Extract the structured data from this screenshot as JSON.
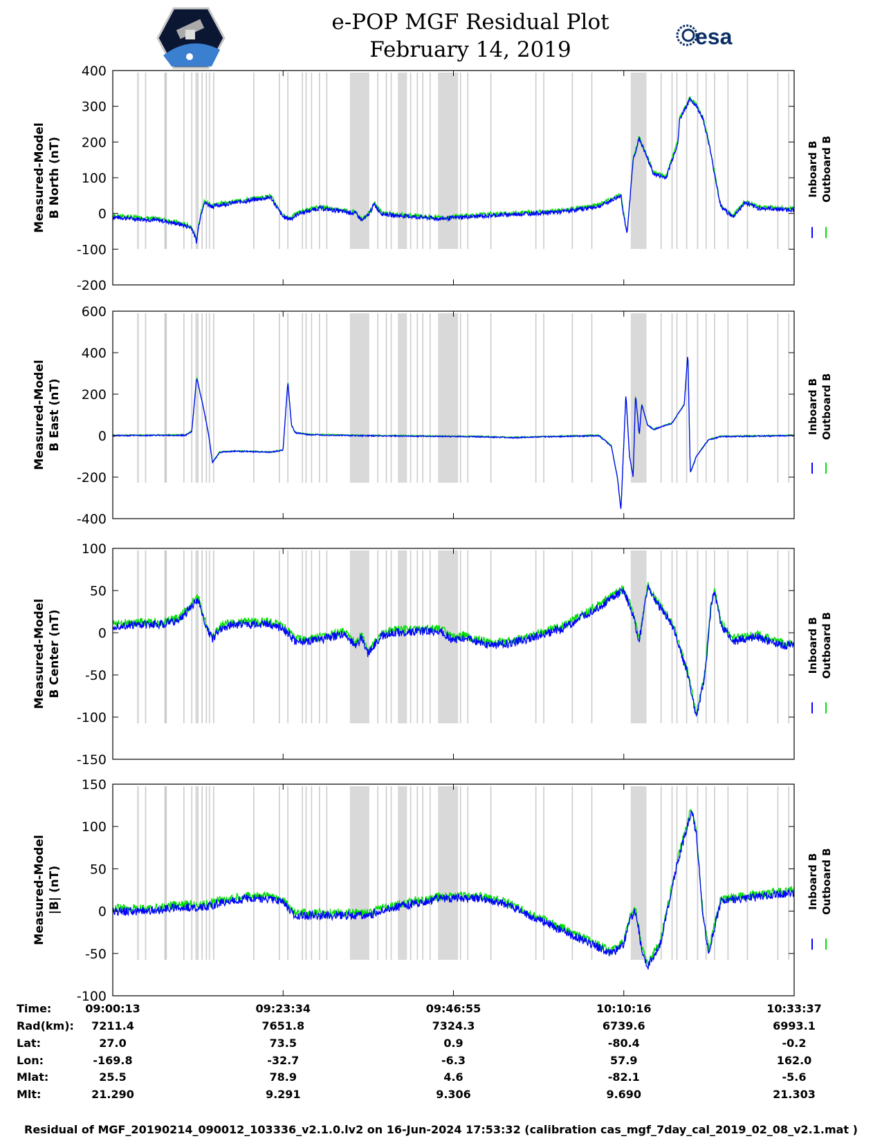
{
  "title_line1": "e-POP MGF Residual Plot",
  "title_line2": "February 14, 2019",
  "logos": {
    "left": "cassiope-mission-logo",
    "right_text": "esa"
  },
  "colors": {
    "inboard": "#0000ff",
    "outboard": "#00dd00",
    "gap_shade": "#d9d9d9"
  },
  "footer": "Residual of MGF_20190214_090012_103336_v2.1.0.lv2 on 16-Jun-2024 17:53:32 (calibration cas_mgf_7day_cal_2019_02_08_v2.1.mat )",
  "chart_data": {
    "type": "line",
    "x_unit": "seconds since 09:00:13",
    "x_range": [
      0,
      5604
    ],
    "legend": [
      "Inboard B",
      "Outboard B"
    ],
    "gap_bands_s": [
      [
        200,
        215
      ],
      [
        425,
        440
      ],
      [
        680,
        695
      ],
      [
        790,
        800
      ],
      [
        1950,
        2110
      ],
      [
        2345,
        2420
      ],
      [
        2675,
        2840
      ],
      [
        4260,
        4390
      ]
    ],
    "gap_lines_s": [
      270,
      430,
      440,
      585,
      650,
      700,
      735,
      770,
      830,
      1160,
      1370,
      1440,
      1560,
      1590,
      1635,
      1700,
      1760,
      2180,
      2250,
      2290,
      2450,
      2505,
      2550,
      2610,
      2860,
      2920,
      3110,
      3480,
      3545,
      3780,
      3940,
      4510,
      4600,
      4640,
      4720,
      4810,
      4880,
      4950,
      5060,
      5220,
      5470,
      5560
    ],
    "panels": [
      {
        "ylabel": [
          "Measured-Model",
          "B North (nT)"
        ],
        "ylim": [
          -200,
          400
        ],
        "ticks": [
          400,
          300,
          200,
          100,
          0,
          -100,
          -200
        ],
        "anchors_t": [
          0,
          400,
          550,
          650,
          690,
          700,
          720,
          750,
          820,
          900,
          1300,
          1400,
          1460,
          1490,
          1530,
          1700,
          2000,
          2050,
          2100,
          2150,
          2210,
          2300,
          2700,
          2900,
          3700,
          4000,
          4180,
          4200,
          4230,
          4280,
          4330,
          4450,
          4550,
          4600,
          4650,
          4660,
          4700,
          4750,
          4800,
          4850,
          4900,
          5000,
          5100,
          5200,
          5300,
          5604
        ],
        "anchors_v": [
          -10,
          -20,
          -30,
          -40,
          -80,
          -50,
          -10,
          30,
          20,
          25,
          45,
          -10,
          -15,
          -10,
          0,
          15,
          0,
          -20,
          -5,
          25,
          0,
          -5,
          -15,
          -10,
          5,
          20,
          50,
          0,
          -60,
          150,
          210,
          110,
          100,
          150,
          200,
          260,
          290,
          320,
          300,
          270,
          200,
          20,
          -10,
          30,
          15,
          10
        ],
        "noise": 6
      },
      {
        "ylabel": [
          "Measured-Model",
          "B East (nT)"
        ],
        "ylim": [
          -400,
          600
        ],
        "ticks": [
          600,
          400,
          200,
          0,
          -200,
          -400
        ],
        "anchors_t": [
          0,
          600,
          650,
          690,
          740,
          790,
          820,
          880,
          1000,
          1300,
          1400,
          1440,
          1470,
          1500,
          1600,
          2000,
          3000,
          3300,
          3600,
          4000,
          4100,
          4150,
          4180,
          4220,
          4250,
          4280,
          4300,
          4330,
          4350,
          4400,
          4450,
          4500,
          4600,
          4700,
          4730,
          4750,
          4800,
          4900,
          5000,
          5604
        ],
        "anchors_v": [
          0,
          2,
          20,
          280,
          150,
          0,
          -130,
          -80,
          -75,
          -80,
          -70,
          260,
          50,
          15,
          5,
          0,
          -5,
          -10,
          -5,
          0,
          -50,
          -200,
          -360,
          200,
          -100,
          -200,
          200,
          0,
          150,
          50,
          30,
          40,
          60,
          150,
          400,
          -180,
          -100,
          -20,
          -5,
          0
        ],
        "noise": 3
      },
      {
        "ylabel": [
          "Measured-Model",
          "B Center (nT)"
        ],
        "ylim": [
          -150,
          100
        ],
        "ticks": [
          100,
          50,
          0,
          -50,
          -100,
          -150
        ],
        "anchors_t": [
          0,
          400,
          550,
          640,
          700,
          760,
          820,
          880,
          1000,
          1300,
          1400,
          1500,
          1640,
          1700,
          1900,
          2000,
          2050,
          2100,
          2200,
          2300,
          2700,
          2800,
          2850,
          3100,
          3300,
          3700,
          4000,
          4200,
          4270,
          4330,
          4400,
          4450,
          4600,
          4730,
          4800,
          4870,
          4920,
          4950,
          5000,
          5100,
          5300,
          5500,
          5604
        ],
        "anchors_v": [
          8,
          10,
          15,
          30,
          40,
          10,
          -8,
          5,
          10,
          10,
          5,
          -10,
          -10,
          -8,
          -2,
          -15,
          -5,
          -25,
          -5,
          0,
          2,
          -10,
          -5,
          -15,
          -12,
          5,
          30,
          50,
          25,
          -10,
          55,
          40,
          10,
          -50,
          -100,
          -50,
          30,
          50,
          10,
          -10,
          -5,
          -15,
          -15
        ],
        "noise": 5
      },
      {
        "ylabel": [
          "Measured-Model",
          "|B| (nT)"
        ],
        "ylim": [
          -100,
          150
        ],
        "ticks": [
          150,
          100,
          50,
          0,
          -50,
          -100
        ],
        "anchors_t": [
          0,
          300,
          550,
          650,
          700,
          900,
          1100,
          1300,
          1400,
          1500,
          1600,
          1800,
          2000,
          2100,
          2200,
          2500,
          2700,
          3000,
          3200,
          3800,
          4100,
          4200,
          4250,
          4300,
          4350,
          4400,
          4500,
          4650,
          4760,
          4800,
          4850,
          4900,
          5000,
          5200,
          5604
        ],
        "anchors_v": [
          0,
          0,
          5,
          5,
          3,
          10,
          15,
          15,
          10,
          -5,
          -5,
          -5,
          -5,
          -5,
          0,
          10,
          15,
          15,
          10,
          -30,
          -50,
          -40,
          -10,
          0,
          -45,
          -65,
          -40,
          60,
          120,
          90,
          0,
          -50,
          12,
          15,
          22
        ],
        "noise": 5
      }
    ],
    "tick_labels": [
      [
        "Time:",
        "09:00:13",
        "09:23:34",
        "09:46:55",
        "10:10:16",
        "10:33:37"
      ],
      [
        "Rad(km):",
        "7211.4",
        "7651.8",
        "7324.3",
        "6739.6",
        "6993.1"
      ],
      [
        "Lat:",
        "27.0",
        "73.5",
        "0.9",
        "-80.4",
        "-0.2"
      ],
      [
        "Lon:",
        "-169.8",
        "-32.7",
        "-6.3",
        "57.9",
        "162.0"
      ],
      [
        "Mlat:",
        "25.5",
        "78.9",
        "4.6",
        "-82.1",
        "-5.6"
      ],
      [
        "Mlt:",
        "21.290",
        "9.291",
        "9.306",
        "9.690",
        "21.303"
      ]
    ]
  }
}
